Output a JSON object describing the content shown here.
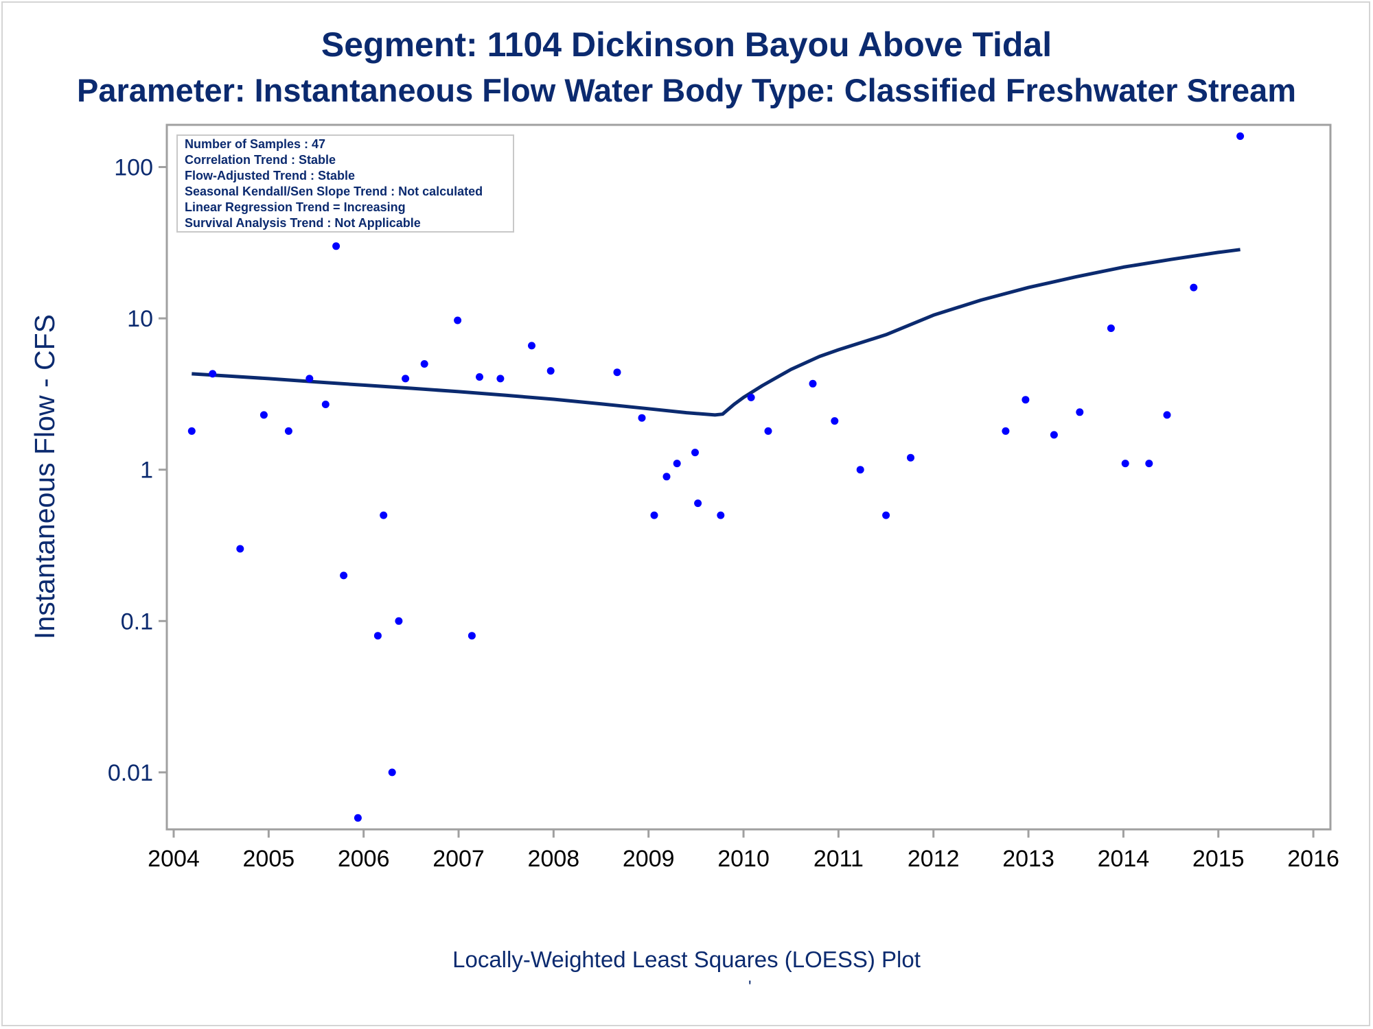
{
  "chart_data": {
    "type": "scatter",
    "title": "Segment: 1104  Dickinson Bayou Above Tidal",
    "subtitle": "Parameter: Instantaneous Flow   Water Body Type: Classified Freshwater Stream",
    "ylabel": "Instantaneous Flow - CFS",
    "xlabel": "",
    "footnote": "Locally-Weighted Least Squares (LOESS) Plot",
    "footnote_mark": "'",
    "yscale": "log",
    "ylim": [
      0.0042,
      190
    ],
    "xlim": [
      2004.0,
      2016.05
    ],
    "xticks": [
      "2004",
      "2005",
      "2006",
      "2007",
      "2008",
      "2009",
      "2010",
      "2011",
      "2012",
      "2013",
      "2014",
      "2015",
      "2016"
    ],
    "yticks": [
      {
        "value": 100,
        "label": "100"
      },
      {
        "value": 10,
        "label": "10"
      },
      {
        "value": 1,
        "label": "1"
      },
      {
        "value": 0.1,
        "label": "0.1"
      },
      {
        "value": 0.01,
        "label": "0.01"
      }
    ],
    "grid": false,
    "legend_placement": "none",
    "inset_text": [
      "Number of Samples : 47",
      "Correlation Trend : Stable",
      "Flow-Adjusted Trend : Stable",
      "Seasonal Kendall/Sen Slope Trend : Not calculated",
      "Linear Regression Trend = Increasing",
      "Survival Analysis Trend : Not Applicable"
    ],
    "point_color": "#0000ff",
    "line_color": "#0b2a6f",
    "points": [
      {
        "x": 2004.19,
        "y": 1.8
      },
      {
        "x": 2004.41,
        "y": 4.3
      },
      {
        "x": 2004.7,
        "y": 0.3
      },
      {
        "x": 2004.95,
        "y": 2.3
      },
      {
        "x": 2005.21,
        "y": 1.8
      },
      {
        "x": 2005.43,
        "y": 4.0
      },
      {
        "x": 2005.6,
        "y": 2.7
      },
      {
        "x": 2005.71,
        "y": 30
      },
      {
        "x": 2005.79,
        "y": 0.2
      },
      {
        "x": 2005.94,
        "y": 0.005
      },
      {
        "x": 2006.15,
        "y": 0.08
      },
      {
        "x": 2006.21,
        "y": 0.5
      },
      {
        "x": 2006.3,
        "y": 0.01
      },
      {
        "x": 2006.37,
        "y": 0.1
      },
      {
        "x": 2006.44,
        "y": 4.0
      },
      {
        "x": 2006.64,
        "y": 5.0
      },
      {
        "x": 2006.99,
        "y": 9.7
      },
      {
        "x": 2007.14,
        "y": 0.08
      },
      {
        "x": 2007.22,
        "y": 4.1
      },
      {
        "x": 2007.44,
        "y": 4.0
      },
      {
        "x": 2007.77,
        "y": 6.6
      },
      {
        "x": 2007.97,
        "y": 4.5
      },
      {
        "x": 2008.67,
        "y": 4.4
      },
      {
        "x": 2008.93,
        "y": 2.2
      },
      {
        "x": 2009.06,
        "y": 0.5
      },
      {
        "x": 2009.19,
        "y": 0.9
      },
      {
        "x": 2009.3,
        "y": 1.1
      },
      {
        "x": 2009.49,
        "y": 1.3
      },
      {
        "x": 2009.52,
        "y": 0.6
      },
      {
        "x": 2009.76,
        "y": 0.5
      },
      {
        "x": 2010.08,
        "y": 3.0
      },
      {
        "x": 2010.26,
        "y": 1.8
      },
      {
        "x": 2010.73,
        "y": 3.7
      },
      {
        "x": 2010.96,
        "y": 2.1
      },
      {
        "x": 2011.23,
        "y": 1.0
      },
      {
        "x": 2011.5,
        "y": 0.5
      },
      {
        "x": 2011.76,
        "y": 1.2
      },
      {
        "x": 2012.76,
        "y": 1.8
      },
      {
        "x": 2012.97,
        "y": 2.9
      },
      {
        "x": 2013.27,
        "y": 1.7
      },
      {
        "x": 2013.54,
        "y": 2.4
      },
      {
        "x": 2013.87,
        "y": 8.6
      },
      {
        "x": 2014.02,
        "y": 1.1
      },
      {
        "x": 2014.27,
        "y": 1.1
      },
      {
        "x": 2014.46,
        "y": 2.3
      },
      {
        "x": 2014.74,
        "y": 16
      },
      {
        "x": 2015.23,
        "y": 160
      }
    ],
    "loess": [
      {
        "x": 2004.19,
        "y": 4.3
      },
      {
        "x": 2004.6,
        "y": 4.15
      },
      {
        "x": 2005.0,
        "y": 4.0
      },
      {
        "x": 2005.5,
        "y": 3.8
      },
      {
        "x": 2006.0,
        "y": 3.62
      },
      {
        "x": 2006.5,
        "y": 3.45
      },
      {
        "x": 2007.0,
        "y": 3.28
      },
      {
        "x": 2007.5,
        "y": 3.1
      },
      {
        "x": 2008.0,
        "y": 2.92
      },
      {
        "x": 2008.5,
        "y": 2.72
      },
      {
        "x": 2009.0,
        "y": 2.53
      },
      {
        "x": 2009.4,
        "y": 2.38
      },
      {
        "x": 2009.7,
        "y": 2.3
      },
      {
        "x": 2009.78,
        "y": 2.33
      },
      {
        "x": 2009.9,
        "y": 2.7
      },
      {
        "x": 2010.0,
        "y": 3.0
      },
      {
        "x": 2010.2,
        "y": 3.6
      },
      {
        "x": 2010.5,
        "y": 4.6
      },
      {
        "x": 2010.8,
        "y": 5.6
      },
      {
        "x": 2011.0,
        "y": 6.2
      },
      {
        "x": 2011.5,
        "y": 7.8
      },
      {
        "x": 2012.0,
        "y": 10.5
      },
      {
        "x": 2012.5,
        "y": 13.2
      },
      {
        "x": 2013.0,
        "y": 16.0
      },
      {
        "x": 2013.5,
        "y": 18.8
      },
      {
        "x": 2014.0,
        "y": 21.8
      },
      {
        "x": 2014.5,
        "y": 24.5
      },
      {
        "x": 2015.0,
        "y": 27.3
      },
      {
        "x": 2015.23,
        "y": 28.5
      }
    ]
  }
}
